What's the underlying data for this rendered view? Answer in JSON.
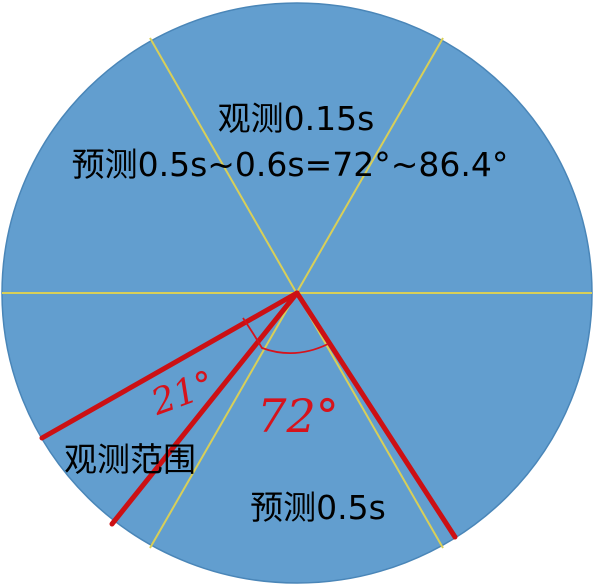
{
  "labels": {
    "observe_top": "观测0.15s",
    "predict_range": "预测0.5s~0.6s=72°~86.4°",
    "observe_range": "观测范围",
    "predict_bottom": "预测0.5s",
    "angle_small": "21°",
    "angle_large": "72°"
  },
  "colors": {
    "disc_fill": "#629ecf",
    "disc_stroke": "#4a86b8",
    "divider_lines": "#d8cf58",
    "marker_lines": "#cc1014",
    "handwriting": "#d6131c"
  }
}
